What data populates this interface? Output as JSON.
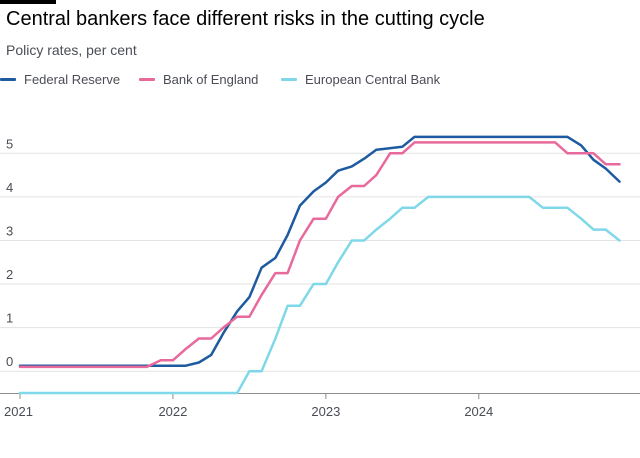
{
  "chart_data": {
    "type": "line",
    "title": "Central bankers face different risks in the cutting cycle",
    "subtitle": "Policy rates, per cent",
    "xlabel": "",
    "ylabel": "",
    "xlim": [
      2021.0,
      2024.93
    ],
    "ylim": [
      -0.5,
      5.5
    ],
    "grid": "horizontal",
    "legend_position": "top-left",
    "y_ticks": [
      0,
      1,
      2,
      3,
      4,
      5
    ],
    "x_ticks": [
      {
        "value": 2021,
        "label": "2021"
      },
      {
        "value": 2022,
        "label": "2022"
      },
      {
        "value": 2023,
        "label": "2023"
      },
      {
        "value": 2024,
        "label": "2024"
      }
    ],
    "series": [
      {
        "name": "Federal Reserve",
        "color": "#1e5aa0",
        "points": [
          [
            2021.0,
            0.125
          ],
          [
            2022.08,
            0.125
          ],
          [
            2022.17,
            0.2
          ],
          [
            2022.25,
            0.375
          ],
          [
            2022.33,
            0.875
          ],
          [
            2022.42,
            1.375
          ],
          [
            2022.5,
            1.7
          ],
          [
            2022.58,
            2.375
          ],
          [
            2022.67,
            2.6
          ],
          [
            2022.75,
            3.125
          ],
          [
            2022.83,
            3.8
          ],
          [
            2022.92,
            4.125
          ],
          [
            2023.0,
            4.33
          ],
          [
            2023.08,
            4.6
          ],
          [
            2023.17,
            4.7
          ],
          [
            2023.25,
            4.875
          ],
          [
            2023.33,
            5.08
          ],
          [
            2023.5,
            5.15
          ],
          [
            2023.58,
            5.375
          ],
          [
            2024.58,
            5.375
          ],
          [
            2024.67,
            5.18
          ],
          [
            2024.75,
            4.85
          ],
          [
            2024.83,
            4.65
          ],
          [
            2024.92,
            4.35
          ]
        ]
      },
      {
        "name": "Bank of England",
        "color": "#e8699b",
        "points": [
          [
            2021.0,
            0.1
          ],
          [
            2021.83,
            0.1
          ],
          [
            2021.92,
            0.25
          ],
          [
            2022.0,
            0.25
          ],
          [
            2022.08,
            0.5
          ],
          [
            2022.17,
            0.75
          ],
          [
            2022.25,
            0.75
          ],
          [
            2022.33,
            1.0
          ],
          [
            2022.42,
            1.25
          ],
          [
            2022.5,
            1.25
          ],
          [
            2022.58,
            1.75
          ],
          [
            2022.67,
            2.25
          ],
          [
            2022.75,
            2.25
          ],
          [
            2022.83,
            3.0
          ],
          [
            2022.92,
            3.5
          ],
          [
            2023.0,
            3.5
          ],
          [
            2023.08,
            4.0
          ],
          [
            2023.17,
            4.25
          ],
          [
            2023.25,
            4.25
          ],
          [
            2023.33,
            4.5
          ],
          [
            2023.42,
            5.0
          ],
          [
            2023.5,
            5.0
          ],
          [
            2023.58,
            5.25
          ],
          [
            2024.5,
            5.25
          ],
          [
            2024.58,
            5.0
          ],
          [
            2024.75,
            5.0
          ],
          [
            2024.83,
            4.75
          ],
          [
            2024.92,
            4.75
          ]
        ]
      },
      {
        "name": "European Central Bank",
        "color": "#7fd8e8",
        "points": [
          [
            2021.0,
            -0.5
          ],
          [
            2022.42,
            -0.5
          ],
          [
            2022.5,
            0.0
          ],
          [
            2022.58,
            0.0
          ],
          [
            2022.67,
            0.75
          ],
          [
            2022.75,
            1.5
          ],
          [
            2022.83,
            1.5
          ],
          [
            2022.92,
            2.0
          ],
          [
            2023.0,
            2.0
          ],
          [
            2023.08,
            2.5
          ],
          [
            2023.17,
            3.0
          ],
          [
            2023.25,
            3.0
          ],
          [
            2023.33,
            3.25
          ],
          [
            2023.42,
            3.5
          ],
          [
            2023.5,
            3.75
          ],
          [
            2023.58,
            3.75
          ],
          [
            2023.67,
            4.0
          ],
          [
            2024.33,
            4.0
          ],
          [
            2024.42,
            3.75
          ],
          [
            2024.58,
            3.75
          ],
          [
            2024.67,
            3.5
          ],
          [
            2024.75,
            3.25
          ],
          [
            2024.83,
            3.25
          ],
          [
            2024.92,
            3.0
          ]
        ]
      }
    ]
  }
}
